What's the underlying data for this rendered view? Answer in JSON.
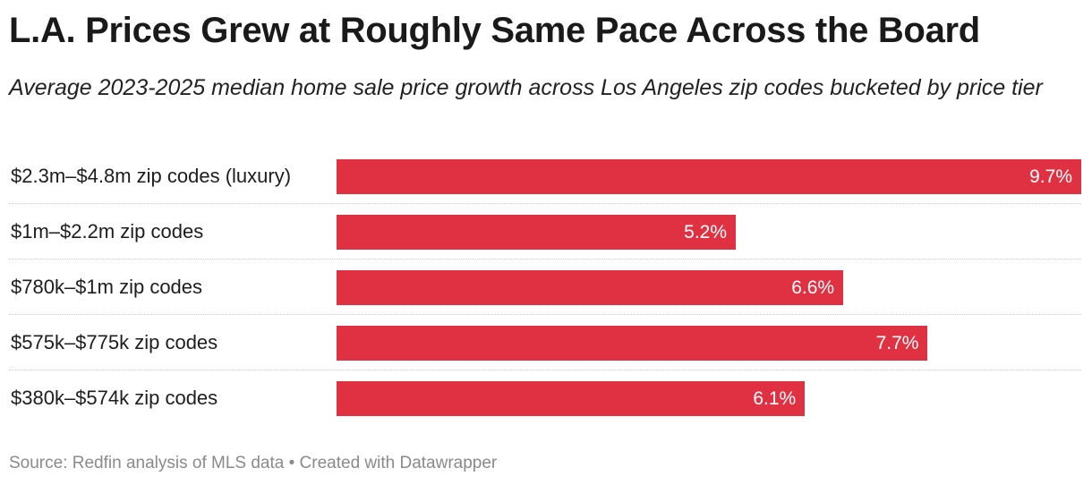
{
  "title": "L.A. Prices Grew at Roughly Same Pace Across the Board",
  "subtitle": "Average 2023-2025 median home sale price growth across Los Angeles zip codes bucketed by price tier",
  "source": "Source: Redfin analysis of MLS data • Created with Datawrapper",
  "colors": {
    "bar": "#e03143",
    "bar_label": "#ffffff",
    "text": "#1a1a1a",
    "source": "#8a8a8a"
  },
  "chart_data": {
    "type": "bar",
    "orientation": "horizontal",
    "categories": [
      "$2.3m–$4.8m zip codes (luxury)",
      "$1m–$2.2m zip codes",
      "$780k–$1m zip codes",
      "$575k–$775k zip codes",
      "$380k–$574k zip codes"
    ],
    "values": [
      9.7,
      5.2,
      6.6,
      7.7,
      6.1
    ],
    "value_labels": [
      "9.7%",
      "5.2%",
      "6.6%",
      "7.7%",
      "6.1%"
    ],
    "xlim": [
      0,
      9.7
    ],
    "grid": false,
    "legend": "none"
  }
}
